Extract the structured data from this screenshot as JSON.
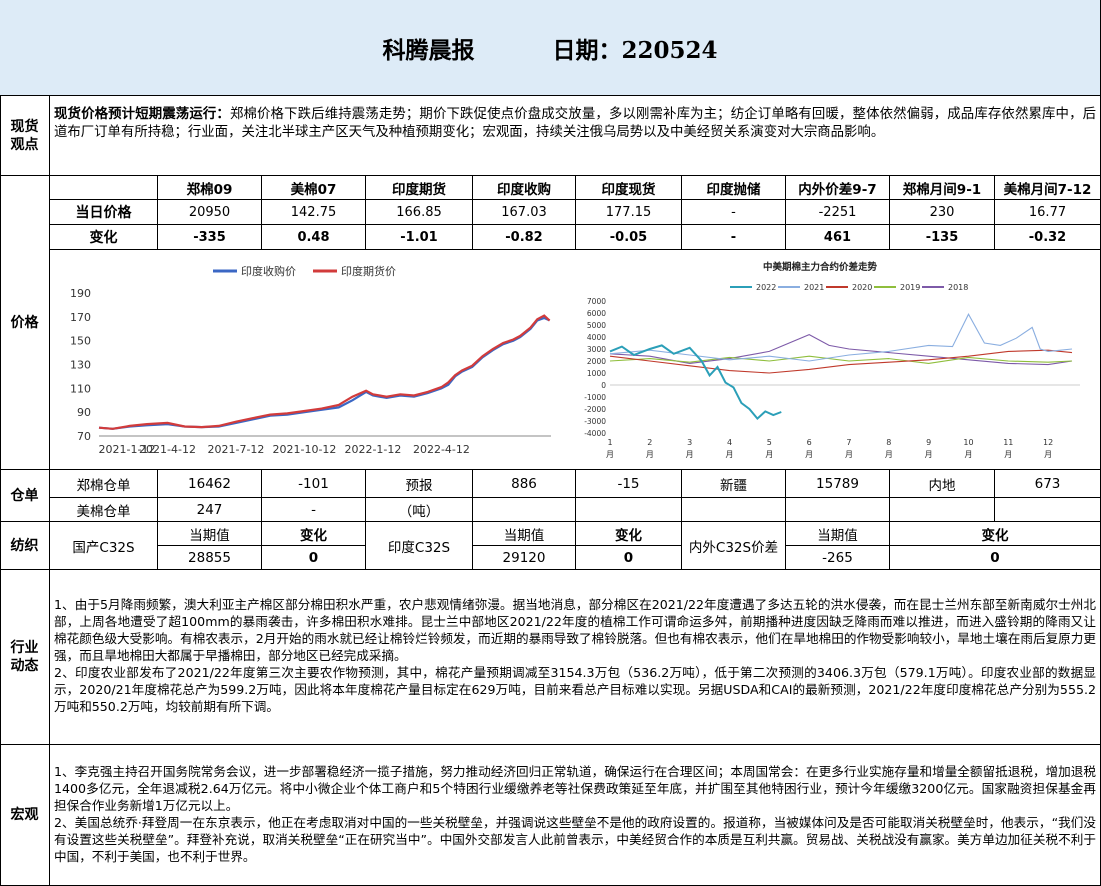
{
  "header": {
    "title": "科腾晨报",
    "date_label": "日期：220524"
  },
  "sections": {
    "spot": "现货\n观点",
    "price": "价格",
    "warehouse": "仓单",
    "textile": "纺织",
    "industry": "行业\n动态",
    "macro": "宏观"
  },
  "spot_view": {
    "lead": "现货价格预计短期震荡运行：",
    "text": "郑棉价格下跌后维持震荡走势；期价下跌促使点价盘成交放量，多以刚需补库为主；纺企订单略有回暖，整体依然偏弱，成品库存依然累库中，后道布厂订单有所持稳；行业面，关注北半球主产区天气及种植预期变化；宏观面，持续关注俄乌局势以及中美经贸关系演变对大宗商品影响。"
  },
  "price_table": {
    "headers": [
      "郑棉09",
      "美棉07",
      "印度期货",
      "印度收购",
      "印度现货",
      "印度抛储",
      "内外价差9-7",
      "郑棉月间9-1",
      "美棉月间7-12"
    ],
    "rows": [
      {
        "label": "当日价格",
        "values": [
          "20950",
          "142.75",
          "166.85",
          "167.03",
          "177.15",
          "-",
          "-2251",
          "230",
          "16.77"
        ]
      },
      {
        "label": "变化",
        "values": [
          "-335",
          "0.48",
          "-1.01",
          "-0.82",
          "-0.05",
          "-",
          "461",
          "-135",
          "-0.32"
        ]
      }
    ]
  },
  "chart_data": [
    {
      "type": "line",
      "title": "",
      "legend": [
        "印度收购价",
        "印度期货价"
      ],
      "x_ticks": [
        "2021-1-12",
        "2021-4-12",
        "2021-7-12",
        "2021-10-12",
        "2022-1-12",
        "2022-4-12"
      ],
      "ylim": [
        70,
        190
      ],
      "y_ticks": [
        70,
        90,
        110,
        130,
        150,
        170,
        190
      ],
      "series": [
        {
          "name": "印度收购价",
          "color": "#3b67c4",
          "points": [
            [
              0,
              77
            ],
            [
              0.2,
              76
            ],
            [
              0.45,
              78
            ],
            [
              0.7,
              79
            ],
            [
              1.0,
              80
            ],
            [
              1.25,
              78
            ],
            [
              1.5,
              77.5
            ],
            [
              1.75,
              78
            ],
            [
              2.0,
              81
            ],
            [
              2.25,
              84
            ],
            [
              2.5,
              87
            ],
            [
              2.75,
              88
            ],
            [
              3.0,
              90
            ],
            [
              3.25,
              92
            ],
            [
              3.5,
              94
            ],
            [
              3.7,
              100
            ],
            [
              3.9,
              107
            ],
            [
              4.0,
              104
            ],
            [
              4.2,
              102
            ],
            [
              4.4,
              104
            ],
            [
              4.6,
              103
            ],
            [
              4.8,
              106
            ],
            [
              5.0,
              110
            ],
            [
              5.1,
              113
            ],
            [
              5.2,
              120
            ],
            [
              5.3,
              124
            ],
            [
              5.45,
              128
            ],
            [
              5.6,
              136
            ],
            [
              5.75,
              142
            ],
            [
              5.9,
              147
            ],
            [
              6.05,
              150
            ],
            [
              6.15,
              153
            ],
            [
              6.3,
              160
            ],
            [
              6.4,
              167
            ],
            [
              6.5,
              169
            ],
            [
              6.58,
              167
            ]
          ]
        },
        {
          "name": "印度期货价",
          "color": "#d23b3b",
          "points": [
            [
              0,
              77
            ],
            [
              0.2,
              76
            ],
            [
              0.45,
              78.5
            ],
            [
              0.7,
              80
            ],
            [
              1.0,
              81
            ],
            [
              1.25,
              78
            ],
            [
              1.5,
              77.5
            ],
            [
              1.75,
              78.5
            ],
            [
              2.0,
              82
            ],
            [
              2.25,
              85
            ],
            [
              2.5,
              88
            ],
            [
              2.75,
              89
            ],
            [
              3.0,
              91
            ],
            [
              3.25,
              93
            ],
            [
              3.5,
              96
            ],
            [
              3.7,
              103
            ],
            [
              3.9,
              108
            ],
            [
              4.0,
              105
            ],
            [
              4.2,
              103
            ],
            [
              4.4,
              105
            ],
            [
              4.6,
              104
            ],
            [
              4.8,
              107
            ],
            [
              5.0,
              111
            ],
            [
              5.1,
              115
            ],
            [
              5.2,
              121
            ],
            [
              5.3,
              125
            ],
            [
              5.45,
              129
            ],
            [
              5.6,
              137
            ],
            [
              5.75,
              143
            ],
            [
              5.9,
              148
            ],
            [
              6.05,
              151
            ],
            [
              6.15,
              154
            ],
            [
              6.3,
              161
            ],
            [
              6.4,
              168
            ],
            [
              6.5,
              171
            ],
            [
              6.58,
              166.85
            ]
          ]
        }
      ]
    },
    {
      "type": "line",
      "title": "中美期棉主力合约价差走势",
      "legend": [
        "2022",
        "2021",
        "2020",
        "2019",
        "2018"
      ],
      "x_ticks": [
        "1\n月",
        "2\n月",
        "3\n月",
        "4\n月",
        "5\n月",
        "6\n月",
        "7\n月",
        "8\n月",
        "9\n月",
        "10\n月",
        "11\n月",
        "12\n月"
      ],
      "ylim": [
        -4000,
        7000
      ],
      "y_ticks": [
        7000,
        6000,
        5000,
        4000,
        3000,
        2000,
        1000,
        0,
        -1000,
        -2000,
        -3000,
        -4000
      ],
      "series": [
        {
          "name": "2022",
          "color": "#2b9fb8",
          "points": [
            [
              1,
              2800
            ],
            [
              1.3,
              3200
            ],
            [
              1.6,
              2500
            ],
            [
              2,
              3000
            ],
            [
              2.3,
              3300
            ],
            [
              2.6,
              2600
            ],
            [
              3,
              3100
            ],
            [
              3.3,
              2000
            ],
            [
              3.5,
              800
            ],
            [
              3.7,
              1500
            ],
            [
              3.9,
              200
            ],
            [
              4.1,
              -200
            ],
            [
              4.3,
              -1500
            ],
            [
              4.5,
              -2000
            ],
            [
              4.7,
              -2800
            ],
            [
              4.9,
              -2200
            ],
            [
              5.1,
              -2500
            ],
            [
              5.3,
              -2251
            ]
          ]
        },
        {
          "name": "2021",
          "color": "#8aaee0",
          "points": [
            [
              1,
              2600
            ],
            [
              2,
              2900
            ],
            [
              3,
              2500
            ],
            [
              4,
              2100
            ],
            [
              5,
              2400
            ],
            [
              6,
              2000
            ],
            [
              7,
              2500
            ],
            [
              8,
              2800
            ],
            [
              9,
              3300
            ],
            [
              9.6,
              3200
            ],
            [
              10,
              5900
            ],
            [
              10.4,
              3500
            ],
            [
              10.8,
              3300
            ],
            [
              11.2,
              3900
            ],
            [
              11.6,
              4800
            ],
            [
              11.8,
              3000
            ],
            [
              12,
              2800
            ],
            [
              12.6,
              3000
            ]
          ]
        },
        {
          "name": "2020",
          "color": "#c0392b",
          "points": [
            [
              1,
              2400
            ],
            [
              2,
              2000
            ],
            [
              3,
              1600
            ],
            [
              4,
              1200
            ],
            [
              5,
              1000
            ],
            [
              6,
              1300
            ],
            [
              7,
              1700
            ],
            [
              8,
              1900
            ],
            [
              9,
              2100
            ],
            [
              10,
              2400
            ],
            [
              11,
              2800
            ],
            [
              12,
              2900
            ],
            [
              12.6,
              2700
            ]
          ]
        },
        {
          "name": "2019",
          "color": "#8fbe3c",
          "points": [
            [
              1,
              2000
            ],
            [
              2,
              2200
            ],
            [
              3,
              1900
            ],
            [
              4,
              2300
            ],
            [
              5,
              2000
            ],
            [
              6,
              2400
            ],
            [
              7,
              2000
            ],
            [
              8,
              2200
            ],
            [
              9,
              1800
            ],
            [
              10,
              2300
            ],
            [
              11,
              2000
            ],
            [
              12,
              1900
            ],
            [
              12.6,
              2000
            ]
          ]
        },
        {
          "name": "2018",
          "color": "#7d5aa8",
          "points": [
            [
              1,
              2600
            ],
            [
              2,
              2400
            ],
            [
              3,
              1800
            ],
            [
              4,
              2200
            ],
            [
              5,
              2800
            ],
            [
              6,
              4200
            ],
            [
              6.5,
              3300
            ],
            [
              7,
              3000
            ],
            [
              8,
              2700
            ],
            [
              9,
              2400
            ],
            [
              10,
              2100
            ],
            [
              11,
              1800
            ],
            [
              12,
              1700
            ],
            [
              12.6,
              2000
            ]
          ]
        }
      ]
    }
  ],
  "warehouse": {
    "row1": [
      "郑棉仓单",
      "16462",
      "-101",
      "预报",
      "886",
      "-15",
      "新疆",
      "15789",
      "内地",
      "673"
    ],
    "row2": [
      "美棉仓单",
      "247",
      "-",
      "（吨）"
    ]
  },
  "textile": {
    "domestic": {
      "label": "国产C32S",
      "current_header": "当期值",
      "change_header": "变化",
      "value": "28855",
      "change": "0"
    },
    "india": {
      "label": "印度C32S",
      "current_header": "当期值",
      "change_header": "变化",
      "value": "29120",
      "change": "0"
    },
    "spread": {
      "label": "内外C32S价差",
      "current_header": "当期值",
      "change_header": "变化",
      "value": "-265",
      "change": "0"
    }
  },
  "industry_news": [
    "1、由于5月降雨频繁，澳大利亚主产棉区部分棉田积水严重，农户悲观情绪弥漫。据当地消息，部分棉区在2021/22年度遭遇了多达五轮的洪水侵袭，而在昆士兰州东部至新南威尔士州北部，上周各地遭受了超100mm的暴雨袭击，许多棉田积水难排。昆士兰中部地区2021/22年度的植棉工作可谓命运多舛，前期播种进度因缺乏降雨而难以推进，而进入盛铃期的降雨又让棉花颜色级大受影响。有棉农表示，2月开始的雨水就已经让棉铃烂铃频发，而近期的暴雨导致了棉铃脱落。但也有棉农表示，他们在旱地棉田的作物受影响较小，旱地土壤在雨后复原力更强，而且旱地棉田大都属于早播棉田，部分地区已经完成采摘。",
    "2、印度农业部发布了2021/22年度第三次主要农作物预测，其中，棉花产量预期调减至3154.3万包（536.2万吨），低于第二次预测的3406.3万包（579.1万吨）。印度农业部的数据显示，2020/21年度棉花总产为599.2万吨，因此将本年度棉花产量目标定在629万吨，目前来看总产目标难以实现。另据USDA和CAI的最新预测，2021/22年度印度棉花总产分别为555.2万吨和550.2万吨，均较前期有所下调。"
  ],
  "macro_news": [
    "1、李克强主持召开国务院常务会议，进一步部署稳经济一揽子措施，努力推动经济回归正常轨道，确保运行在合理区间；本周国常会：在更多行业实施存量和增量全额留抵退税，增加退税1400多亿元，全年退减税2.64万亿元。将中小微企业个体工商户和5个特困行业缓缴养老等社保费政策延至年底，并扩围至其他特困行业，预计今年缓缴3200亿元。国家融资担保基金再担保合作业务新增1万亿元以上。",
    "2、美国总统乔·拜登周一在东京表示，他正在考虑取消对中国的一些关税壁垒，并强调说这些壁垒不是他的政府设置的。报道称，当被媒体问及是否可能取消关税壁垒时，他表示，“我们没有设置这些关税壁垒”。拜登补充说，取消关税壁垒“正在研究当中”。中国外交部发言人此前曾表示，中美经贸合作的本质是互利共赢。贸易战、关税战没有赢家。美方单边加征关税不利于中国，不利于美国，也不利于世界。"
  ]
}
